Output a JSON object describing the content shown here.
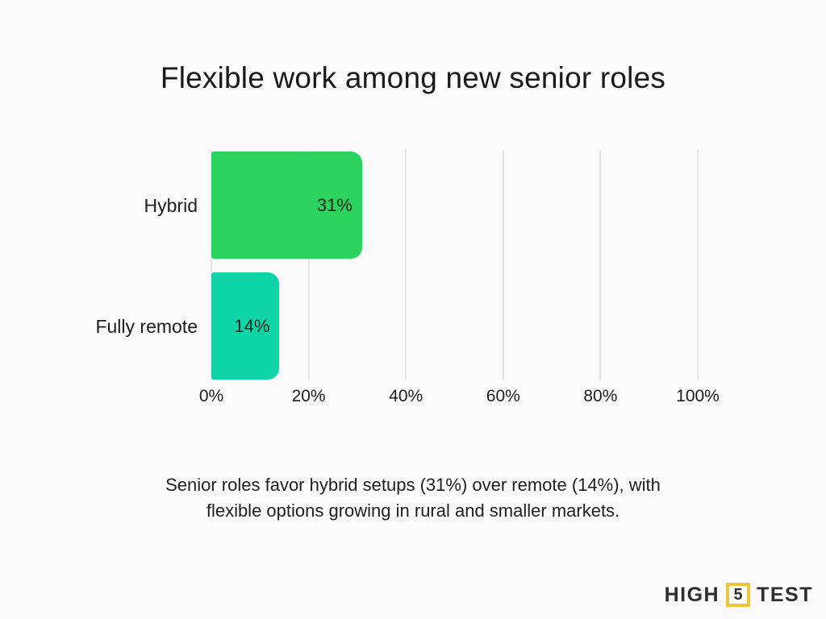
{
  "page": {
    "background": "#FBFBFB",
    "title": "Flexible work among new senior roles"
  },
  "chart_data": {
    "type": "bar",
    "orientation": "horizontal",
    "title": "Flexible work among new senior roles",
    "categories": [
      "Hybrid",
      "Fully remote"
    ],
    "values": [
      31,
      14
    ],
    "value_labels": [
      "31%",
      "14%"
    ],
    "bar_colors": [
      "#2DD35F",
      "#0ED4A8"
    ],
    "xlabel": "",
    "ylabel": "",
    "xlim": [
      0,
      100
    ],
    "x_tick_values": [
      0,
      20,
      40,
      60,
      80,
      100
    ],
    "x_ticks": [
      "0%",
      "20%",
      "40%",
      "60%",
      "80%",
      "100%"
    ],
    "grid": "vertical",
    "gridline_color": "#E6E6E6",
    "legend": "none"
  },
  "caption": {
    "lines": [
      "Senior roles favor hybrid setups (31%) over remote (14%), with",
      "flexible options growing in rural and smaller markets."
    ],
    "full_text": "Senior roles favor hybrid setups (31%) over remote (14%), with flexible options growing in rural and smaller markets."
  },
  "logo": {
    "part1": "HIGH",
    "number": "5",
    "part2": "TEST",
    "accent_color": "#F0C437"
  }
}
